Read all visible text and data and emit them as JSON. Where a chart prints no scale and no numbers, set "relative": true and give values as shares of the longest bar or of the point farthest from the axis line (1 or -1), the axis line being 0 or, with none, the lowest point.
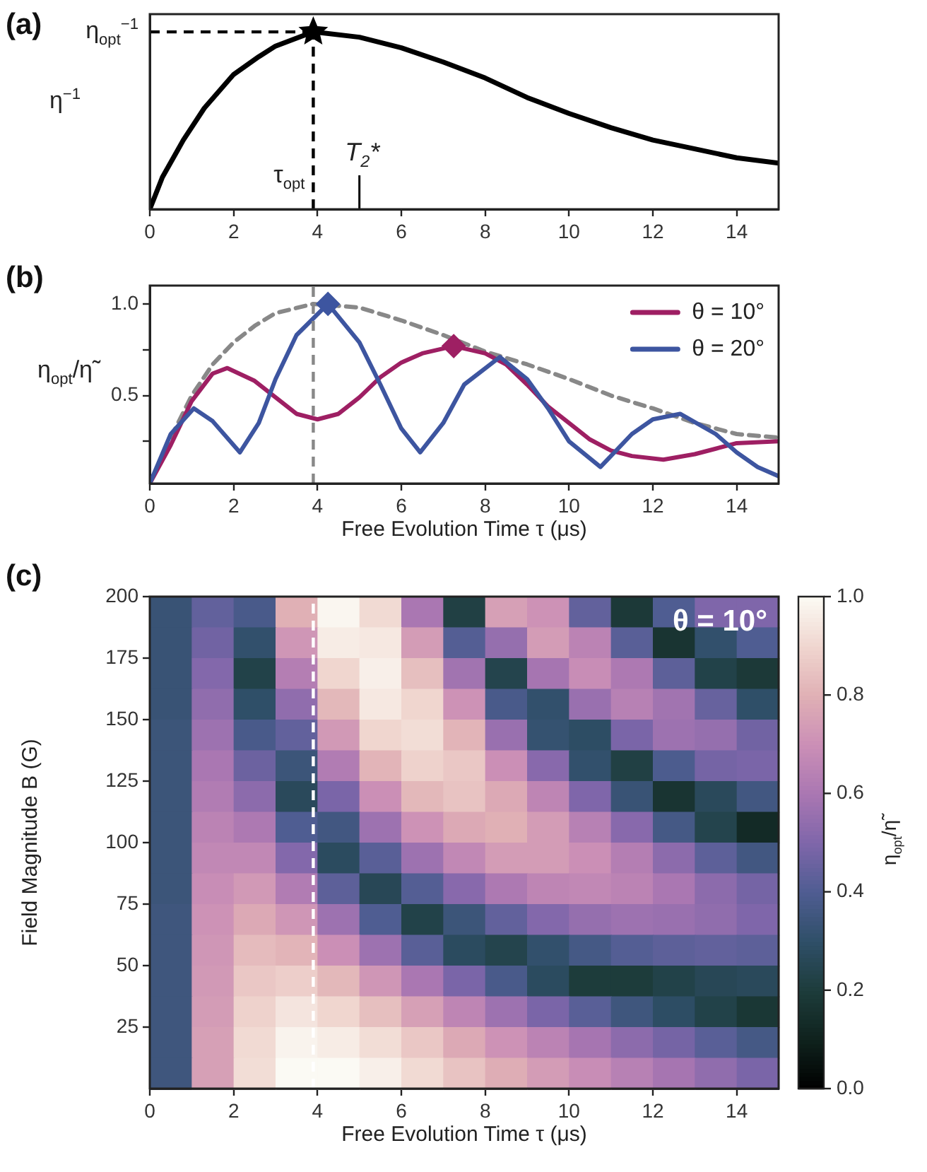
{
  "chart_data": [
    {
      "type": "line",
      "title": "(a)",
      "ylabel": "η$^{−1}$",
      "relative": true,
      "xlim": [
        0,
        15
      ],
      "xticks": [
        0,
        2,
        4,
        6,
        8,
        10,
        12,
        14
      ],
      "series": [
        {
          "color": "#000000",
          "x": [
            0,
            0.3,
            0.8,
            1.3,
            2,
            2.6,
            3,
            3.9,
            5,
            6,
            7,
            8,
            9,
            10,
            11,
            12,
            13,
            14,
            15
          ],
          "values": [
            0,
            0.18,
            0.39,
            0.57,
            0.76,
            0.86,
            0.92,
            1,
            0.97,
            0.91,
            0.83,
            0.74,
            0.63,
            0.54,
            0.46,
            0.39,
            0.34,
            0.29,
            0.26
          ]
        },
        {
          "type": "scatter",
          "marker": "star",
          "color": "#000000",
          "x": [
            3.9
          ],
          "values": [
            1
          ]
        }
      ],
      "ref_lines": [
        {
          "axis": "y",
          "value": 1,
          "label": "η$_{opt}$$^{−1}$",
          "line_style": "dashed",
          "color": "#000000"
        },
        {
          "axis": "x",
          "value": 3.9,
          "label": "τ$_{opt}$",
          "line_style": "dashed",
          "color": "#000000"
        },
        {
          "axis": "x",
          "value": 5,
          "label": "T$_{2}$*",
          "line_style": "solid",
          "color": "#000000"
        }
      ]
    },
    {
      "type": "line",
      "title": "(b)",
      "xlabel": "Free Evolution Time τ (μs)",
      "ylabel": "η$_{opt}$/η̃",
      "xlim": [
        0,
        15
      ],
      "xticks": [
        0,
        2,
        4,
        6,
        8,
        10,
        12,
        14
      ],
      "ylim": [
        0.02,
        1.1
      ],
      "yticks": [
        {
          "value": 0.25,
          "label": null
        },
        0.5,
        {
          "value": 0.75,
          "label": null
        },
        {
          "value": 1,
          "label": "1.0"
        }
      ],
      "legend": "top right",
      "series": [
        {
          "color": "#888888",
          "line_style": "dashed",
          "x": [
            0,
            0.5,
            1,
            1.5,
            2,
            2.5,
            3,
            3.9,
            5,
            6,
            7,
            8,
            9,
            10,
            11,
            12,
            13,
            14,
            15
          ],
          "values": [
            0.02,
            0.27,
            0.5,
            0.67,
            0.79,
            0.88,
            0.95,
            1,
            0.98,
            0.91,
            0.83,
            0.74,
            0.67,
            0.59,
            0.5,
            0.43,
            0.35,
            0.29,
            0.27
          ]
        },
        {
          "name": "θ = 10°",
          "color": "#9e1f63",
          "x": [
            0,
            0.5,
            1,
            1.5,
            1.85,
            2.5,
            3,
            3.5,
            4,
            4.5,
            5,
            5.5,
            6,
            6.5,
            7.25,
            8,
            8.5,
            9,
            9.5,
            10,
            10.5,
            11,
            11.5,
            12.25,
            13,
            13.5,
            14,
            15
          ],
          "values": [
            0.02,
            0.23,
            0.47,
            0.62,
            0.65,
            0.58,
            0.49,
            0.4,
            0.37,
            0.4,
            0.49,
            0.6,
            0.68,
            0.73,
            0.77,
            0.73,
            0.67,
            0.56,
            0.44,
            0.35,
            0.26,
            0.2,
            0.17,
            0.15,
            0.18,
            0.21,
            0.24,
            0.25
          ]
        },
        {
          "name": "θ = 20°",
          "color": "#3d55a0",
          "x": [
            0,
            0.5,
            1.05,
            1.5,
            2.15,
            2.6,
            3,
            3.5,
            4.25,
            5,
            5.5,
            6,
            6.45,
            7,
            7.5,
            8.35,
            9,
            9.5,
            10,
            10.75,
            11.5,
            12,
            12.65,
            13.5,
            14,
            14.5,
            15
          ],
          "values": [
            0.02,
            0.29,
            0.43,
            0.36,
            0.19,
            0.35,
            0.59,
            0.83,
            1,
            0.79,
            0.56,
            0.32,
            0.19,
            0.35,
            0.56,
            0.71,
            0.59,
            0.43,
            0.25,
            0.11,
            0.29,
            0.37,
            0.4,
            0.29,
            0.19,
            0.11,
            0.06
          ]
        },
        {
          "type": "scatter",
          "marker": "diamond",
          "color": "#9e1f63",
          "x": [
            7.25
          ],
          "values": [
            0.77
          ]
        },
        {
          "type": "scatter",
          "marker": "diamond",
          "color": "#3d55a0",
          "x": [
            4.25
          ],
          "values": [
            1
          ]
        }
      ],
      "ref_lines": [
        {
          "axis": "x",
          "value": 3.9,
          "line_style": "dashed",
          "color": "#888888"
        }
      ]
    },
    {
      "type": "heatmap",
      "title": "(c)",
      "xlabel": "Free Evolution Time τ (μs)",
      "ylabel": "Field Magnitude B (G)",
      "clabel": "η$_{opt}$/η̃",
      "xlim": [
        0,
        15
      ],
      "xticks": [
        0,
        2,
        4,
        6,
        8,
        10,
        12,
        14
      ],
      "ylim": [
        0,
        200
      ],
      "yticks": [
        25,
        50,
        75,
        100,
        125,
        150,
        175,
        200
      ],
      "x": [
        0.5,
        1.5,
        2.5,
        3.5,
        4.5,
        5.5,
        6.5,
        7.5,
        8.5,
        9.5,
        10.5,
        11.5,
        12.5,
        13.5,
        14.5
      ],
      "y": [
        193.75,
        181.25,
        168.75,
        156.25,
        143.75,
        131.25,
        118.75,
        106.25,
        93.75,
        81.25,
        68.75,
        56.25,
        43.75,
        31.25,
        18.75,
        6.25
      ],
      "cells": [
        [
          0.33,
          0.44,
          0.38,
          0.8,
          0.99,
          0.91,
          0.6,
          0.22,
          0.75,
          0.71,
          0.44,
          0.19,
          0.4,
          0.5,
          0.5
        ],
        [
          0.33,
          0.47,
          0.31,
          0.72,
          0.96,
          0.95,
          0.74,
          0.41,
          0.55,
          0.74,
          0.65,
          0.42,
          0.17,
          0.31,
          0.4
        ],
        [
          0.33,
          0.51,
          0.23,
          0.63,
          0.9,
          0.97,
          0.84,
          0.58,
          0.24,
          0.59,
          0.69,
          0.61,
          0.43,
          0.23,
          0.19
        ],
        [
          0.33,
          0.54,
          0.3,
          0.54,
          0.82,
          0.95,
          0.9,
          0.71,
          0.38,
          0.31,
          0.56,
          0.64,
          0.58,
          0.45,
          0.3
        ],
        [
          0.34,
          0.57,
          0.38,
          0.44,
          0.73,
          0.9,
          0.92,
          0.81,
          0.56,
          0.32,
          0.29,
          0.49,
          0.57,
          0.55,
          0.47
        ],
        [
          0.34,
          0.6,
          0.46,
          0.34,
          0.62,
          0.81,
          0.89,
          0.86,
          0.7,
          0.52,
          0.31,
          0.22,
          0.39,
          0.48,
          0.49
        ],
        [
          0.34,
          0.62,
          0.53,
          0.27,
          0.49,
          0.7,
          0.82,
          0.85,
          0.78,
          0.66,
          0.5,
          0.33,
          0.17,
          0.27,
          0.36
        ],
        [
          0.34,
          0.65,
          0.61,
          0.4,
          0.36,
          0.57,
          0.71,
          0.78,
          0.8,
          0.74,
          0.64,
          0.52,
          0.37,
          0.24,
          0.13
        ],
        [
          0.34,
          0.67,
          0.67,
          0.51,
          0.28,
          0.42,
          0.57,
          0.67,
          0.74,
          0.74,
          0.7,
          0.63,
          0.53,
          0.43,
          0.36
        ],
        [
          0.34,
          0.69,
          0.73,
          0.62,
          0.43,
          0.26,
          0.41,
          0.52,
          0.61,
          0.66,
          0.67,
          0.65,
          0.6,
          0.53,
          0.48
        ],
        [
          0.35,
          0.71,
          0.78,
          0.72,
          0.57,
          0.4,
          0.23,
          0.34,
          0.44,
          0.51,
          0.55,
          0.57,
          0.56,
          0.54,
          0.5
        ],
        [
          0.35,
          0.72,
          0.83,
          0.81,
          0.7,
          0.57,
          0.42,
          0.28,
          0.24,
          0.31,
          0.37,
          0.41,
          0.43,
          0.44,
          0.43
        ],
        [
          0.35,
          0.73,
          0.86,
          0.88,
          0.82,
          0.72,
          0.6,
          0.49,
          0.38,
          0.28,
          0.2,
          0.2,
          0.23,
          0.26,
          0.27
        ],
        [
          0.35,
          0.74,
          0.89,
          0.94,
          0.9,
          0.84,
          0.75,
          0.66,
          0.57,
          0.49,
          0.42,
          0.35,
          0.29,
          0.23,
          0.18
        ],
        [
          0.35,
          0.75,
          0.91,
          0.98,
          0.96,
          0.92,
          0.86,
          0.78,
          0.71,
          0.65,
          0.59,
          0.53,
          0.48,
          0.42,
          0.37
        ],
        [
          0.35,
          0.75,
          0.92,
          1,
          1,
          0.97,
          0.91,
          0.85,
          0.79,
          0.74,
          0.69,
          0.64,
          0.59,
          0.54,
          0.49
        ]
      ],
      "clim": [
        0,
        1
      ],
      "cticks": [
        {
          "value": 0,
          "label": "0.0"
        },
        0.2,
        0.4,
        0.6,
        0.8,
        {
          "value": 1,
          "label": "1.0"
        }
      ],
      "ref_lines": [
        {
          "axis": "x",
          "value": 3.9,
          "line_style": "dashed",
          "color": "#ffffff"
        }
      ],
      "annotations": [
        "θ = 10°"
      ]
    }
  ]
}
